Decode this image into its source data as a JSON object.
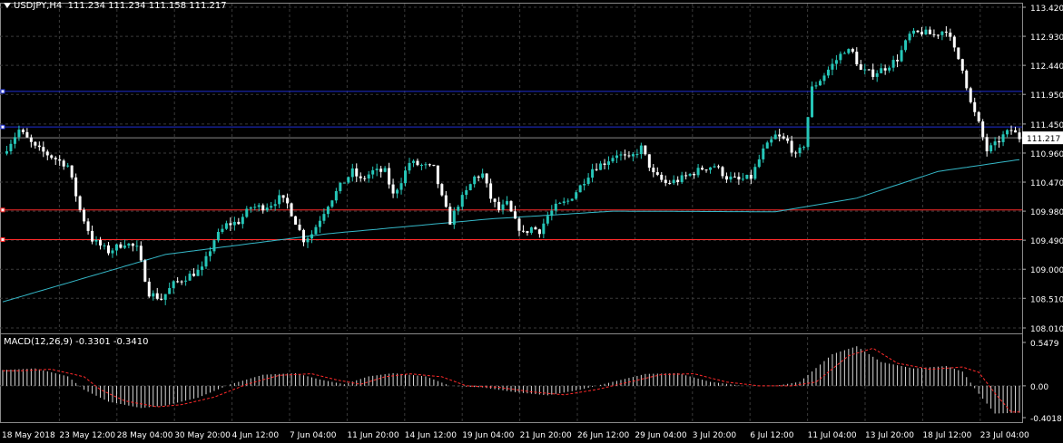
{
  "header": {
    "symbol_tf": "USDJPY,H4",
    "ohlc": "111.234 111.234 111.158 111.217"
  },
  "macd": {
    "label": "MACD(12,26,9) -0.3301 -0.3410",
    "ticks": [
      "0.5479",
      "0.00",
      "-0.4018"
    ],
    "tick_values": [
      0.5479,
      0.0,
      -0.4018
    ]
  },
  "colors": {
    "background": "#000000",
    "grid": "#3a3a3a",
    "bull_candle": "#26c6b8",
    "bear_candle": "#ffffff",
    "ma_line": "#35b8c8",
    "blue_level": "#1f2fd6",
    "red_level": "#ff2a2a",
    "current_price": "#8a8a8a",
    "macd_hist": "#d8d8d8",
    "macd_signal": "#ff2a2a"
  },
  "chart_data": {
    "type": "candlestick",
    "price_axis": {
      "ticks": [
        "113.420",
        "112.930",
        "112.440",
        "111.950",
        "111.450",
        "110.960",
        "110.470",
        "109.980",
        "109.490",
        "109.000",
        "108.510",
        "108.010"
      ],
      "tick_values": [
        113.42,
        112.93,
        112.44,
        111.95,
        111.45,
        110.96,
        110.47,
        109.98,
        109.49,
        109.0,
        108.51,
        108.01
      ],
      "range": [
        108.01,
        113.42
      ],
      "current_price_label": "111.217",
      "current_price": 111.217
    },
    "time_axis": [
      "18 May 2018",
      "23 May 12:00",
      "28 May 04:00",
      "30 May 20:00",
      "4 Jun 12:00",
      "7 Jun 04:00",
      "11 Jun 20:00",
      "14 Jun 12:00",
      "19 Jun 04:00",
      "21 Jun 20:00",
      "26 Jun 12:00",
      "29 Jun 04:00",
      "3 Jul 20:00",
      "6 Jul 12:00",
      "11 Jul 04:00",
      "13 Jul 20:00",
      "18 Jul 12:00",
      "23 Jul 04:00"
    ],
    "horizontal_levels": [
      {
        "price": 112.0,
        "color": "blue"
      },
      {
        "price": 111.4,
        "color": "blue"
      },
      {
        "price": 110.0,
        "color": "red"
      },
      {
        "price": 109.5,
        "color": "red"
      }
    ],
    "close_path": [
      [
        0,
        110.95
      ],
      [
        4,
        111.35
      ],
      [
        8,
        111.05
      ],
      [
        12,
        110.9
      ],
      [
        16,
        110.75
      ],
      [
        19,
        110.0
      ],
      [
        22,
        109.5
      ],
      [
        26,
        109.3
      ],
      [
        30,
        109.45
      ],
      [
        33,
        109.35
      ],
      [
        36,
        108.6
      ],
      [
        39,
        108.5
      ],
      [
        42,
        108.75
      ],
      [
        46,
        108.9
      ],
      [
        49,
        109.0
      ],
      [
        52,
        109.5
      ],
      [
        55,
        109.75
      ],
      [
        58,
        109.8
      ],
      [
        61,
        110.05
      ],
      [
        64,
        110.05
      ],
      [
        66,
        110.1
      ],
      [
        68,
        110.2
      ],
      [
        70,
        110.1
      ],
      [
        72,
        109.8
      ],
      [
        74,
        109.5
      ],
      [
        76,
        109.6
      ],
      [
        78,
        109.85
      ],
      [
        80,
        110.1
      ],
      [
        83,
        110.4
      ],
      [
        86,
        110.65
      ],
      [
        88,
        110.5
      ],
      [
        91,
        110.65
      ],
      [
        94,
        110.65
      ],
      [
        96,
        110.25
      ],
      [
        98,
        110.5
      ],
      [
        100,
        110.8
      ],
      [
        103,
        110.75
      ],
      [
        106,
        110.7
      ],
      [
        108,
        110.2
      ],
      [
        110,
        109.8
      ],
      [
        112,
        110.1
      ],
      [
        114,
        110.3
      ],
      [
        116,
        110.55
      ],
      [
        118,
        110.6
      ],
      [
        120,
        110.2
      ],
      [
        122,
        110.0
      ],
      [
        124,
        110.1
      ],
      [
        126,
        109.8
      ],
      [
        128,
        109.6
      ],
      [
        130,
        109.7
      ],
      [
        132,
        109.65
      ],
      [
        134,
        109.9
      ],
      [
        136,
        110.05
      ],
      [
        139,
        110.15
      ],
      [
        142,
        110.4
      ],
      [
        145,
        110.7
      ],
      [
        148,
        110.8
      ],
      [
        151,
        110.95
      ],
      [
        154,
        110.85
      ],
      [
        157,
        111.05
      ],
      [
        160,
        110.6
      ],
      [
        163,
        110.45
      ],
      [
        166,
        110.5
      ],
      [
        169,
        110.6
      ],
      [
        172,
        110.7
      ],
      [
        175,
        110.75
      ],
      [
        178,
        110.55
      ],
      [
        181,
        110.5
      ],
      [
        184,
        110.55
      ],
      [
        187,
        111.0
      ],
      [
        190,
        111.25
      ],
      [
        193,
        111.15
      ],
      [
        195,
        110.9
      ],
      [
        197,
        111.1
      ],
      [
        199,
        112.05
      ],
      [
        201,
        112.2
      ],
      [
        204,
        112.45
      ],
      [
        207,
        112.7
      ],
      [
        209,
        112.65
      ],
      [
        211,
        112.35
      ],
      [
        214,
        112.3
      ],
      [
        217,
        112.4
      ],
      [
        220,
        112.55
      ],
      [
        223,
        112.95
      ],
      [
        226,
        113.0
      ],
      [
        229,
        112.95
      ],
      [
        232,
        113.05
      ],
      [
        234,
        112.7
      ],
      [
        236,
        112.4
      ],
      [
        238,
        111.8
      ],
      [
        240,
        111.45
      ],
      [
        242,
        111.0
      ],
      [
        244,
        111.1
      ],
      [
        246,
        111.25
      ],
      [
        248,
        111.35
      ],
      [
        250,
        111.22
      ]
    ],
    "ma_line": [
      [
        0,
        108.45
      ],
      [
        40,
        109.25
      ],
      [
        80,
        109.6
      ],
      [
        120,
        109.85
      ],
      [
        150,
        109.98
      ],
      [
        190,
        109.97
      ],
      [
        210,
        110.2
      ],
      [
        230,
        110.65
      ],
      [
        250,
        110.85
      ]
    ],
    "macd_histogram": [
      [
        0,
        0.2
      ],
      [
        8,
        0.22
      ],
      [
        16,
        0.12
      ],
      [
        20,
        -0.05
      ],
      [
        26,
        -0.2
      ],
      [
        34,
        -0.28
      ],
      [
        40,
        -0.25
      ],
      [
        48,
        -0.15
      ],
      [
        56,
        0.02
      ],
      [
        64,
        0.14
      ],
      [
        72,
        0.16
      ],
      [
        78,
        0.08
      ],
      [
        84,
        0.02
      ],
      [
        90,
        0.12
      ],
      [
        96,
        0.16
      ],
      [
        104,
        0.12
      ],
      [
        110,
        0.0
      ],
      [
        118,
        -0.02
      ],
      [
        126,
        -0.08
      ],
      [
        134,
        -0.12
      ],
      [
        142,
        -0.05
      ],
      [
        150,
        0.05
      ],
      [
        158,
        0.15
      ],
      [
        166,
        0.16
      ],
      [
        174,
        0.05
      ],
      [
        182,
        0.0
      ],
      [
        190,
        0.0
      ],
      [
        196,
        0.05
      ],
      [
        204,
        0.4
      ],
      [
        210,
        0.5
      ],
      [
        216,
        0.3
      ],
      [
        224,
        0.22
      ],
      [
        232,
        0.25
      ],
      [
        236,
        0.18
      ],
      [
        240,
        -0.1
      ],
      [
        244,
        -0.35
      ],
      [
        250,
        -0.34
      ]
    ]
  }
}
